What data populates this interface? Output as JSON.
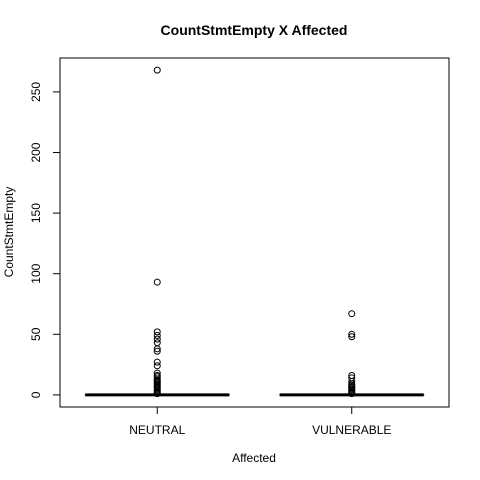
{
  "chart_data": {
    "type": "boxplot",
    "title": "CountStmtEmpty X Affected",
    "xlabel": "Affected",
    "ylabel": "CountStmtEmpty",
    "categories": [
      "NEUTRAL",
      "VULNERABLE"
    ],
    "ylim": [
      -10,
      278
    ],
    "yticks": [
      0,
      50,
      100,
      150,
      200,
      250
    ],
    "ytick_labels": [
      "0",
      "50",
      "100",
      "150",
      "200",
      "250"
    ],
    "grid": false,
    "series": [
      {
        "category": "NEUTRAL",
        "box": {
          "min": 0,
          "q1": 0,
          "median": 0,
          "q3": 0,
          "max": 0
        },
        "outliers": [
          268,
          93,
          52,
          49,
          46,
          43,
          38,
          36,
          27,
          24,
          18,
          16,
          15,
          13,
          12,
          11,
          10,
          9,
          8,
          7,
          6,
          5,
          4,
          3,
          2,
          1
        ]
      },
      {
        "category": "VULNERABLE",
        "box": {
          "min": 0,
          "q1": 0,
          "median": 0,
          "q3": 0,
          "max": 0
        },
        "outliers": [
          67,
          50,
          48,
          16,
          14,
          11,
          9,
          8,
          7,
          6,
          5,
          4,
          3,
          2,
          1
        ]
      }
    ]
  }
}
